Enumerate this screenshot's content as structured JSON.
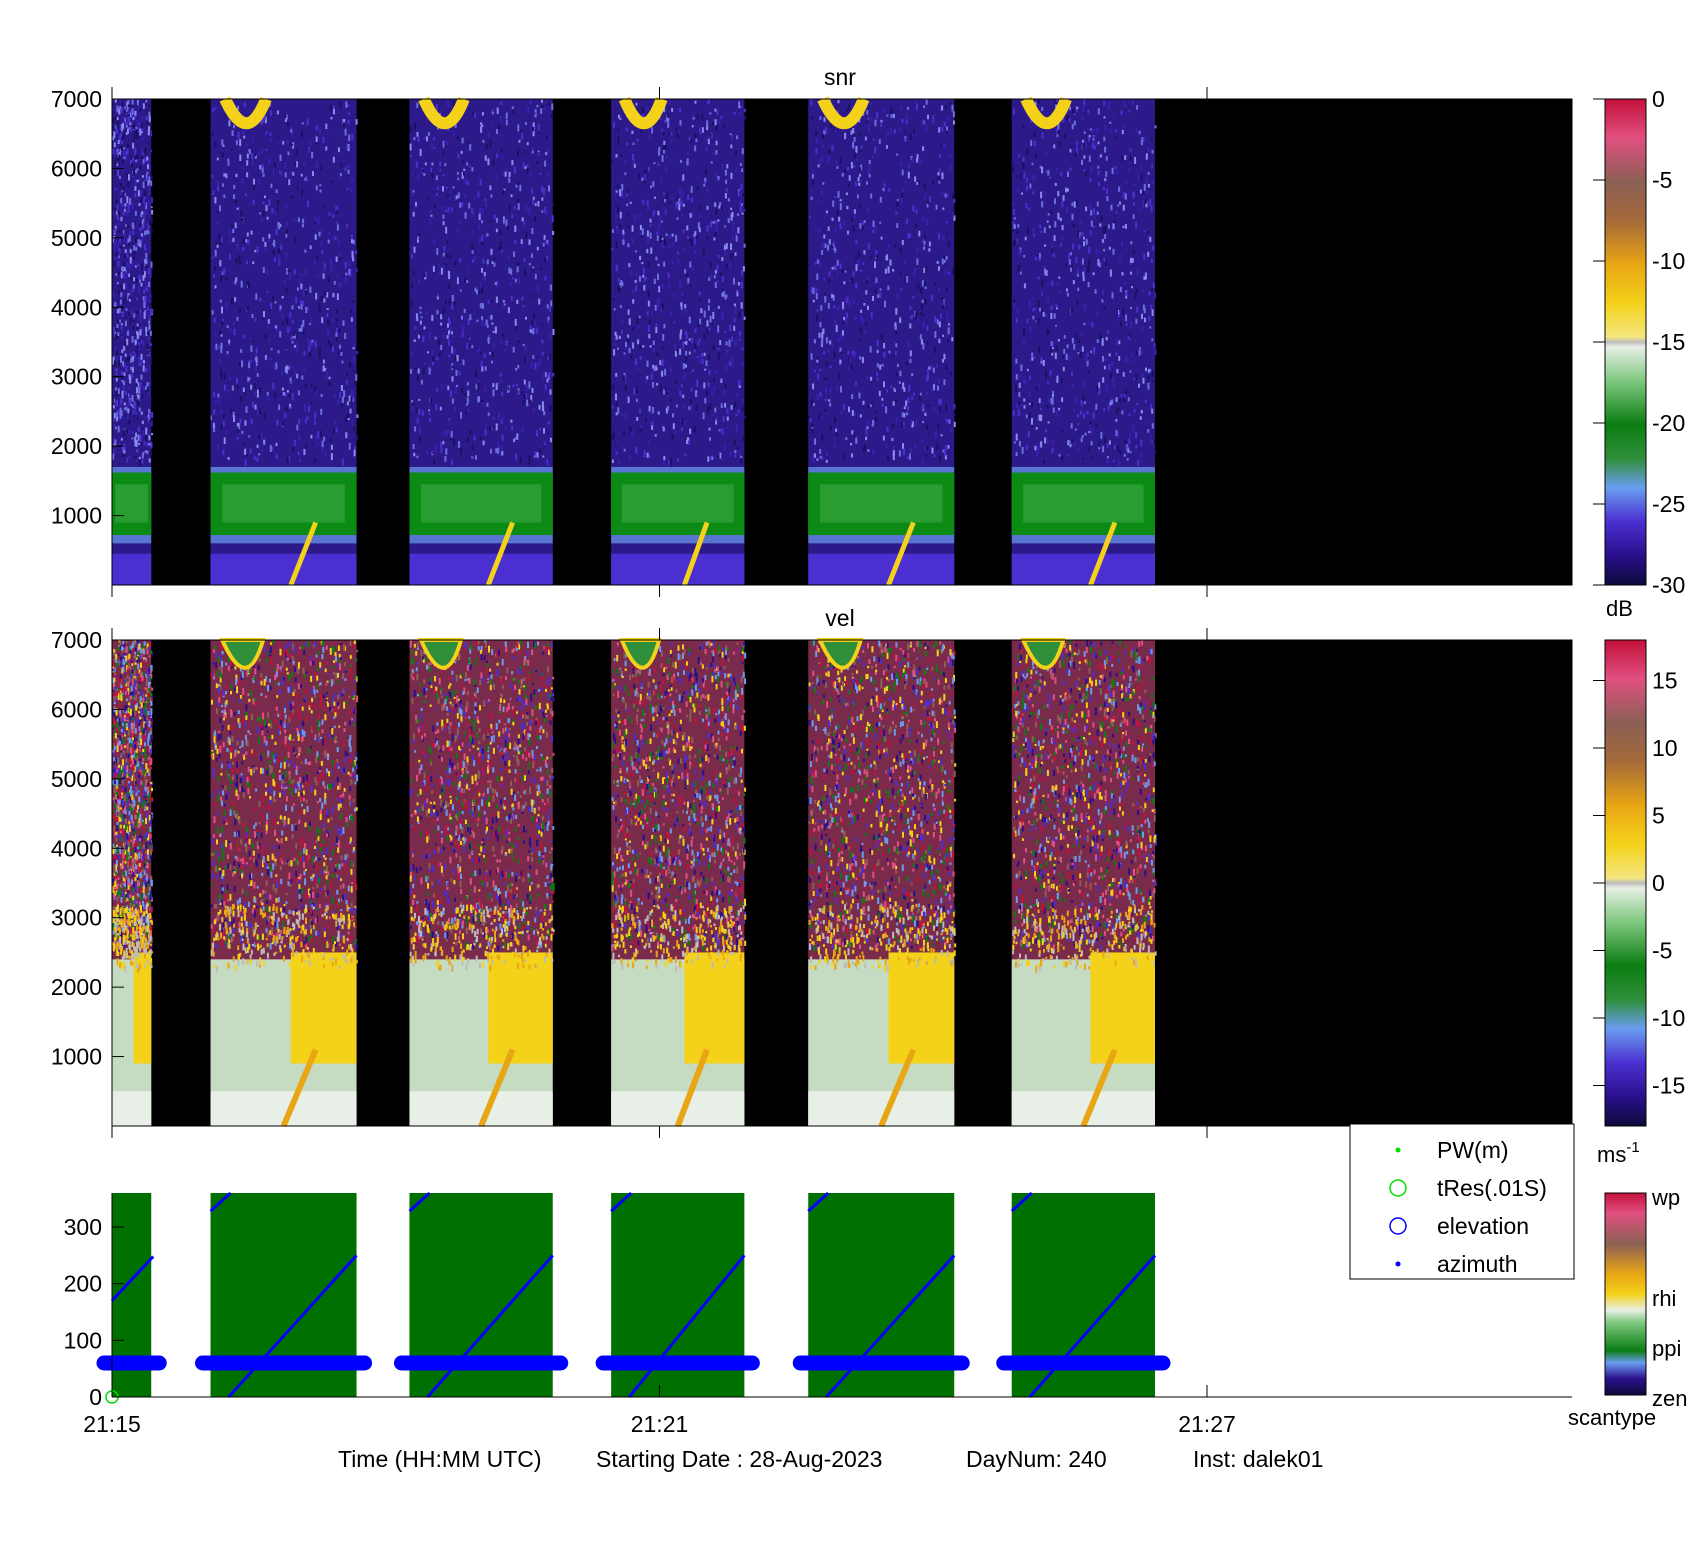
{
  "chart_data": [
    {
      "id": "snr",
      "type": "heatmap",
      "title": "snr",
      "xlabel": "",
      "ylabel": "",
      "ylim": [
        0,
        7000
      ],
      "yticks": [
        1000,
        2000,
        3000,
        4000,
        5000,
        6000,
        7000
      ],
      "ytick_labels": [
        "1000",
        "2000",
        "3000",
        "4000",
        "5000",
        "6000",
        "7000"
      ],
      "xticks_minutes": [
        0,
        6,
        12
      ],
      "xtick_labels": [
        "",
        "",
        ""
      ],
      "data_segments_minutes": [
        [
          0.0,
          0.43
        ],
        [
          1.08,
          2.68
        ],
        [
          3.26,
          4.83
        ],
        [
          5.47,
          6.93
        ],
        [
          7.63,
          9.23
        ],
        [
          9.86,
          11.43
        ]
      ],
      "value_description": {
        "boundary_layer_band_m": [
          700,
          1650
        ],
        "band_mean_db": -21,
        "background_db": -27,
        "cloud_tops_m": [
          6200,
          7000
        ],
        "cloud_db": -12
      },
      "colorbar": {
        "range": [
          -30,
          0
        ],
        "ticks": [
          0,
          -5,
          -10,
          -15,
          -20,
          -25,
          -30
        ],
        "tick_labels": [
          "0",
          "-5",
          "-10",
          "-15",
          "-20",
          "-25",
          "-30"
        ],
        "unit": "dB"
      }
    },
    {
      "id": "vel",
      "type": "heatmap",
      "title": "vel",
      "xlabel": "",
      "ylabel": "",
      "ylim": [
        0,
        7000
      ],
      "yticks": [
        1000,
        2000,
        3000,
        4000,
        5000,
        6000,
        7000
      ],
      "ytick_labels": [
        "1000",
        "2000",
        "3000",
        "4000",
        "5000",
        "6000",
        "7000"
      ],
      "xticks_minutes": [
        0,
        6,
        12
      ],
      "xtick_labels": [
        "",
        "",
        ""
      ],
      "data_segments_minutes": [
        [
          0.0,
          0.43
        ],
        [
          1.08,
          2.68
        ],
        [
          3.26,
          4.83
        ],
        [
          5.47,
          6.93
        ],
        [
          7.63,
          9.23
        ],
        [
          9.86,
          11.43
        ]
      ],
      "colorbar": {
        "range": [
          -18,
          18
        ],
        "ticks": [
          15,
          10,
          5,
          0,
          -5,
          -10,
          -15
        ],
        "tick_labels": [
          "15",
          "10",
          "5",
          "0",
          "-5",
          "-10",
          "-15"
        ],
        "unit": "ms",
        "unit_exponent": "-1"
      }
    },
    {
      "id": "scan",
      "type": "scatter",
      "title": "",
      "xlabel": "Time (HH:MM UTC)",
      "ylabel": "",
      "ylim": [
        0,
        360
      ],
      "yticks": [
        0,
        100,
        200,
        300
      ],
      "ytick_labels": [
        "0",
        "100",
        "200",
        "300"
      ],
      "xticks_minutes": [
        0,
        6,
        12
      ],
      "xtick_labels": [
        "21:15",
        "21:21",
        "21:27"
      ],
      "scantype_segments": [
        {
          "start": 0.0,
          "end": 0.43,
          "scantype": "ppi"
        },
        {
          "start": 1.08,
          "end": 2.68,
          "scantype": "ppi"
        },
        {
          "start": 3.26,
          "end": 4.83,
          "scantype": "ppi"
        },
        {
          "start": 5.47,
          "end": 6.93,
          "scantype": "ppi"
        },
        {
          "start": 7.63,
          "end": 9.23,
          "scantype": "ppi"
        },
        {
          "start": 9.86,
          "end": 11.43,
          "scantype": "ppi"
        }
      ],
      "series": [
        {
          "name": "PW(m)",
          "color": "#00dd00",
          "marker": "dot",
          "value": 55
        },
        {
          "name": "tRes(.01S)",
          "color": "#00dd00",
          "marker": "circle-open",
          "value": 0
        },
        {
          "name": "elevation",
          "color": "#0000ff",
          "marker": "circle-open",
          "value": 60
        },
        {
          "name": "azimuth",
          "color": "#0000ff",
          "marker": "dot",
          "segments": [
            {
              "start": 0.0,
              "end": 0.43,
              "az_start": 170,
              "az_end": 248
            },
            {
              "start": 1.08,
              "end": 2.68,
              "az_start": 328,
              "az_end": 250
            },
            {
              "start": 3.26,
              "end": 4.83,
              "az_start": 328,
              "az_end": 250
            },
            {
              "start": 5.47,
              "end": 6.93,
              "az_start": 328,
              "az_end": 250
            },
            {
              "start": 7.63,
              "end": 9.23,
              "az_start": 328,
              "az_end": 250
            },
            {
              "start": 9.86,
              "end": 11.43,
              "az_start": 328,
              "az_end": 250
            }
          ]
        }
      ],
      "legend_position": "top-right",
      "colorbar": {
        "tick_labels": [
          "wp",
          "rhi",
          "ppi",
          "zen"
        ],
        "label": "scantype"
      }
    }
  ],
  "footer": {
    "time_label": "Time (HH:MM UTC)",
    "date_label": "Starting Date : 28-Aug-2023",
    "daynum_label": "DayNum: 240",
    "inst_label": "Inst: dalek01"
  },
  "colors": {
    "snr_colormap": [
      "#0d0a3a",
      "#2a0f8c",
      "#4b2fd0",
      "#6a9df0",
      "#2f8f3a",
      "#0b7d12",
      "#7fc87f",
      "#e8efe6",
      "#bcbcbc",
      "#f4d21a",
      "#e8a514",
      "#a56a3a",
      "#8c5f55",
      "#e05080",
      "#c4103a"
    ],
    "vel_colormap": [
      "#0d0a3a",
      "#2a0f8c",
      "#4b2fd0",
      "#6a9df0",
      "#2f8f3a",
      "#0b7d12",
      "#7fc87f",
      "#e8efe6",
      "#bcbcbc",
      "#f4d21a",
      "#e8a514",
      "#a56a3a",
      "#8c5f55",
      "#e05080",
      "#c4103a"
    ],
    "scan_background": "#007000",
    "no_data": "#000000"
  }
}
